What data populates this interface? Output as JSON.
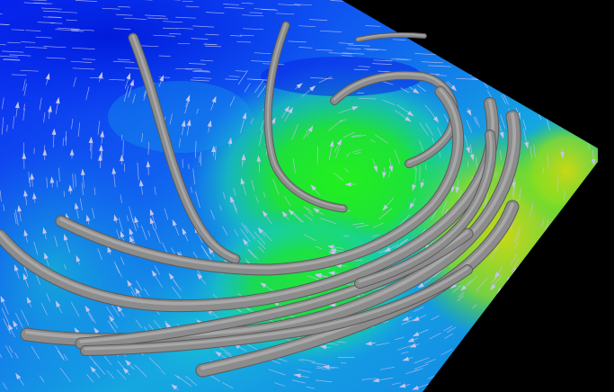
{
  "scene": {
    "background_color": "#000000",
    "plane_colors": {
      "low": "#0b2cf0",
      "mid_low": "#1a8cf0",
      "mid": "#14c9c0",
      "high": "#1ee81e",
      "peak": "#b8d61a"
    },
    "tube_color": "#8c8c8c",
    "arrow_color": "#c4c4ee",
    "vector_field": {
      "vortex_center": [
        0.58,
        0.42
      ],
      "rotation": "counter-clockwise"
    }
  }
}
